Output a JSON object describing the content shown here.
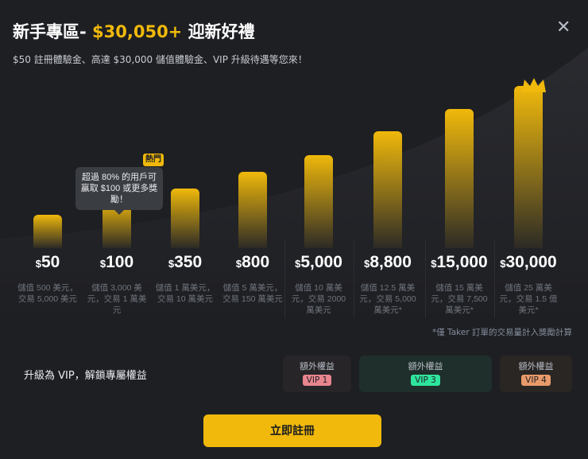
{
  "header": {
    "title_prefix": "新手專區- ",
    "title_amount": "$30,050+",
    "title_suffix": " 迎新好禮",
    "subtitle": "$50 註冊體驗金、高達 $30,000 儲值體驗金、VIP 升級待遇等您來！",
    "close_icon": "close-icon"
  },
  "tiers": [
    {
      "amount": "50",
      "desc": "儲值 500 美元，交易 5,000 美元",
      "level": 0.15
    },
    {
      "amount": "100",
      "desc": "儲值 3,000 美元，交易 1 萬美元",
      "level": 0.24
    },
    {
      "amount": "350",
      "desc": "儲值 1 萬美元，交易 10 萬美元",
      "level": 0.32
    },
    {
      "amount": "800",
      "desc": "儲值 5 萬美元，交易 150 萬美元",
      "level": 0.43
    },
    {
      "amount": "5,000",
      "desc": "儲值 10 萬美元，交易 2000 萬美元",
      "level": 0.54
    },
    {
      "amount": "8,800",
      "desc": "儲值 12.5 萬美元，交易 5,000 萬美元*",
      "level": 0.7
    },
    {
      "amount": "15,000",
      "desc": "儲值 15 萬美元，交易 7,500 萬美元*",
      "level": 0.85
    },
    {
      "amount": "30,000",
      "desc": "儲值 25 萬美元，交易 1.5 億美元*",
      "level": 1.0
    }
  ],
  "currency_symbol": "$",
  "tooltip": {
    "text": "超過 80% 的用戶可贏取 $100 或更多獎勵！",
    "hot_badge": "熱門"
  },
  "footnote": "*僅 Taker 訂單的交易量計入獎勵計算",
  "vip": {
    "label": "升級為 VIP，解鎖專屬權益",
    "cards": [
      {
        "title": "額外權益",
        "badge": "VIP 1",
        "color": "#e8858f"
      },
      {
        "title": "額外權益",
        "badge": "VIP 3",
        "color": "#2ee59d"
      },
      {
        "title": "額外權益",
        "badge": "VIP 4",
        "color": "#e89a6a"
      }
    ]
  },
  "cta": {
    "label": "立即註冊"
  },
  "colors": {
    "accent": "#f0b90b",
    "background": "#1e1f23"
  }
}
